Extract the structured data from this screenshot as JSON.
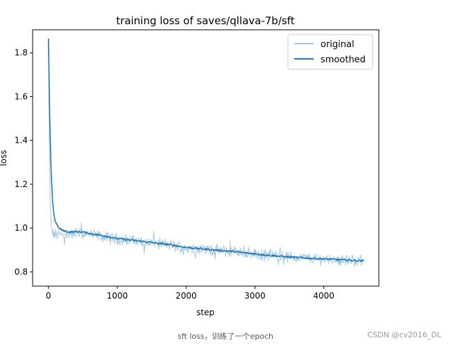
{
  "chart_data": {
    "type": "line",
    "title": "training loss of saves/qllava-7b/sft",
    "xlabel": "step",
    "ylabel": "loss",
    "xlim": [
      -230,
      4800
    ],
    "ylim": [
      0.735,
      1.905
    ],
    "xticks": [
      0,
      1000,
      2000,
      3000,
      4000
    ],
    "yticks": [
      0.8,
      1.0,
      1.2,
      1.4,
      1.6,
      1.8
    ],
    "legend_position": "top-right",
    "series": [
      {
        "name": "original",
        "color": "#a6c8e0",
        "style": "noisy",
        "x": [
          0,
          20,
          40,
          60,
          80,
          100,
          150,
          200,
          300,
          400,
          500,
          600,
          700,
          800,
          900,
          1000,
          1200,
          1400,
          1600,
          1800,
          2000,
          2200,
          2400,
          2600,
          2800,
          3000,
          3200,
          3400,
          3600,
          3800,
          4000,
          4200,
          4400,
          4580
        ],
        "y": [
          1.86,
          1.15,
          1.0,
          0.975,
          0.97,
          0.97,
          0.97,
          0.97,
          0.975,
          0.975,
          0.975,
          0.97,
          0.965,
          0.96,
          0.955,
          0.95,
          0.945,
          0.935,
          0.93,
          0.92,
          0.91,
          0.905,
          0.9,
          0.895,
          0.89,
          0.88,
          0.875,
          0.87,
          0.865,
          0.862,
          0.858,
          0.855,
          0.852,
          0.85
        ]
      },
      {
        "name": "smoothed",
        "color": "#1f77b4",
        "x": [
          0,
          20,
          40,
          60,
          80,
          100,
          150,
          200,
          300,
          400,
          500,
          600,
          700,
          800,
          900,
          1000,
          1200,
          1400,
          1600,
          1800,
          2000,
          2200,
          2400,
          2600,
          2800,
          3000,
          3200,
          3400,
          3600,
          3800,
          4000,
          4200,
          4400,
          4580
        ],
        "y": [
          1.865,
          1.48,
          1.25,
          1.12,
          1.06,
          1.03,
          1.0,
          0.99,
          0.982,
          0.983,
          0.982,
          0.975,
          0.97,
          0.965,
          0.958,
          0.952,
          0.945,
          0.938,
          0.93,
          0.922,
          0.912,
          0.906,
          0.9,
          0.895,
          0.889,
          0.882,
          0.876,
          0.87,
          0.866,
          0.862,
          0.859,
          0.856,
          0.853,
          0.85
        ]
      }
    ]
  },
  "caption": "sft loss，训练了一个epoch",
  "watermark": "CSDN @cv2016_DL"
}
